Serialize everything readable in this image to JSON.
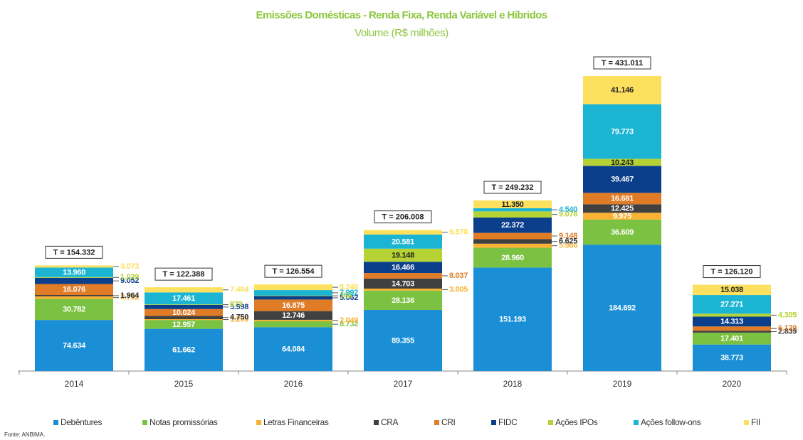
{
  "chart_data": {
    "type": "stacked_bar",
    "title": "Emissões Domésticas - Renda Fixa, Renda Variável e Híbridos",
    "subtitle": "Volume (R$ milhões)",
    "source": "Fonte: ANBIMA.",
    "categories": [
      "2014",
      "2015",
      "2016",
      "2017",
      "2018",
      "2019",
      "2020"
    ],
    "total_labels": [
      "T = 154.332",
      "T = 122.388",
      "T = 126.554",
      "T = 206.008",
      "T = 249.232",
      "T = 431.011",
      "T = 126.120"
    ],
    "legend": "bottom",
    "series": [
      {
        "name": "Debêntures",
        "color": "#1a8fd6",
        "values": [
          74634,
          61662,
          64084,
          89355,
          151193,
          184692,
          38773
        ],
        "value_labels": [
          "74.634",
          "61.662",
          "64.084",
          "89.355",
          "151.193",
          "184.692",
          "38.773"
        ]
      },
      {
        "name": "Notas promissórias",
        "color": "#7cc242",
        "values": [
          30782,
          12957,
          8732,
          28136,
          28960,
          36609,
          17401
        ],
        "value_labels": [
          "30.782",
          "12.957",
          "8.732",
          "28.136",
          "28.960",
          "36.609",
          "17.401"
        ]
      },
      {
        "name": "Letras Financeiras",
        "color": "#f9b233",
        "values": [
          3752,
          1200,
          2049,
          3005,
          5966,
          9975,
          null
        ],
        "value_labels": [
          "3.752",
          "1.200",
          "2.049",
          "3.005",
          "5.966",
          "9.975",
          null
        ]
      },
      {
        "name": "CRA",
        "color": "#404040",
        "values": [
          1964,
          4750,
          12746,
          14703,
          6625,
          12425,
          2839
        ],
        "value_labels": [
          "1.964",
          "4.750",
          "12.746",
          "14.703",
          "6.625",
          "12.425",
          "2.839"
        ]
      },
      {
        "name": "CRI",
        "color": "#e07b26",
        "values": [
          16076,
          10024,
          16875,
          8037,
          9148,
          16681,
          6179
        ],
        "value_labels": [
          "16.076",
          "10.024",
          "16.875",
          "8.037",
          "9.148",
          "16.681",
          "6.179"
        ]
      },
      {
        "name": "FIDC",
        "color": "#0b3f8c",
        "values": [
          9052,
          5998,
          5062,
          16466,
          22372,
          39467,
          14313
        ],
        "value_labels": [
          "9.052",
          "5.998",
          "5.062",
          "16.466",
          "22.372",
          "39.467",
          "14.313"
        ]
      },
      {
        "name": "Ações IPOs",
        "color": "#b5d334",
        "values": [
          1039,
          873,
          766,
          19148,
          9078,
          10243,
          4305
        ],
        "value_labels": [
          "1.039",
          "873",
          "766",
          "19.148",
          "9.078",
          "10.243",
          "4.305"
        ]
      },
      {
        "name": "Ações follow-ons",
        "color": "#1bb5d3",
        "values": [
          13960,
          17461,
          7992,
          20581,
          4540,
          79773,
          27271
        ],
        "value_labels": [
          "13.960",
          "17.461",
          "7.992",
          "20.581",
          "4.540",
          "79.773",
          "27.271"
        ]
      },
      {
        "name": "FII",
        "color": "#fde15e",
        "values": [
          3073,
          7464,
          8248,
          6578,
          11350,
          41146,
          15038
        ],
        "value_labels": [
          "3.073",
          "7.464",
          "8.248",
          "6.578",
          "11.350",
          "41.146",
          "15.038"
        ]
      }
    ]
  }
}
